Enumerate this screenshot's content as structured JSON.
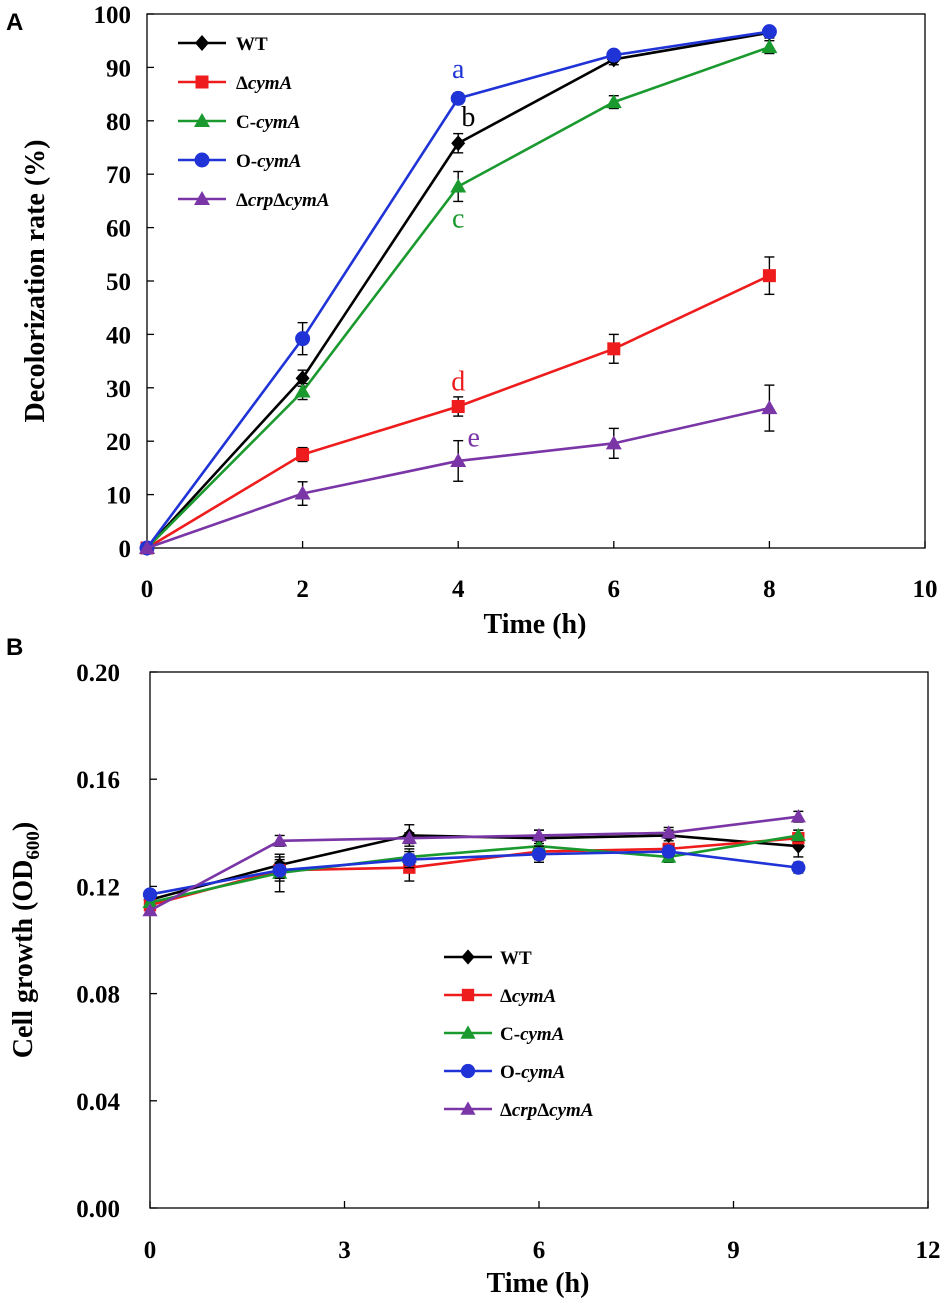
{
  "colors": {
    "WT": "#000000",
    "ΔcymA": "#ee1c1c",
    "C-cymA": "#1a9a2e",
    "O-cymA": "#1f33d6",
    "ΔcrpΔcymA": "#7a35a6"
  },
  "chart_data": [
    {
      "panel_label": "A",
      "type": "line",
      "title": "",
      "xlabel": "Time  (h)",
      "ylabel": "Decolorization  rate  (%)",
      "xlim": [
        0,
        10
      ],
      "ylim": [
        0,
        100
      ],
      "xticks": [
        0,
        2,
        4,
        6,
        8,
        10
      ],
      "yticks": [
        0,
        10,
        20,
        30,
        40,
        50,
        60,
        70,
        80,
        90,
        100
      ],
      "x": [
        0,
        2,
        4,
        6,
        8
      ],
      "legend_position": "top-left",
      "series": [
        {
          "name": "WT",
          "legend_main": "WT",
          "legend_italic": "",
          "legend_rest": "",
          "marker": "diamond",
          "values": [
            0,
            31.8,
            75.8,
            91.5,
            96.5
          ],
          "errors": [
            0,
            1.5,
            1.8,
            1.0,
            1.0
          ]
        },
        {
          "name": "ΔcymA",
          "legend_main": "Δ",
          "legend_italic": "cymA",
          "legend_rest": "",
          "marker": "square",
          "values": [
            0,
            17.5,
            26.5,
            37.3,
            51.0
          ],
          "errors": [
            0,
            1.3,
            1.8,
            2.7,
            3.5
          ]
        },
        {
          "name": "C-cymA",
          "legend_main": "C-",
          "legend_italic": "cymA",
          "legend_rest": "",
          "marker": "triangle",
          "values": [
            0,
            29.3,
            67.7,
            83.5,
            93.8
          ],
          "errors": [
            0,
            1.5,
            2.8,
            1.2,
            1.2
          ]
        },
        {
          "name": "O-cymA",
          "legend_main": "O-",
          "legend_italic": "cymA",
          "legend_rest": "",
          "marker": "circle",
          "values": [
            0,
            39.2,
            84.2,
            92.3,
            96.7
          ],
          "errors": [
            0,
            3.0,
            1.0,
            0.8,
            0.6
          ]
        },
        {
          "name": "ΔcrpΔcymA",
          "legend_main": "Δ",
          "legend_italic": "crp",
          "legend_rest": "Δ",
          "legend_italic2": "cymA",
          "marker": "triangle",
          "values": [
            0,
            10.2,
            16.3,
            19.6,
            26.2
          ],
          "errors": [
            0,
            2.2,
            3.8,
            2.8,
            4.3
          ]
        }
      ],
      "annotations": [
        {
          "text": "a",
          "series": "O-cymA",
          "x": 4,
          "y": 88.0
        },
        {
          "text": "b",
          "series": "WT",
          "x": 4.13,
          "y": 79.0
        },
        {
          "text": "c",
          "series": "C-cymA",
          "x": 4.0,
          "y": 60.0
        },
        {
          "text": "d",
          "series": "ΔcymA",
          "x": 4.0,
          "y": 29.5
        },
        {
          "text": "e",
          "series": "ΔcrpΔcymA",
          "x": 4.2,
          "y": 19.0
        }
      ]
    },
    {
      "panel_label": "B",
      "type": "line",
      "title": "",
      "xlabel": "Time  (h)",
      "ylabel": "Cell growth (OD",
      "ylabel_sub": "600",
      "ylabel_close": ")",
      "xlim": [
        0,
        12
      ],
      "ylim": [
        0,
        0.2
      ],
      "xticks": [
        0,
        3,
        6,
        9,
        12
      ],
      "yticks": [
        "0.00",
        "0.04",
        "0.08",
        "0.12",
        "0.16",
        "0.20"
      ],
      "x": [
        0,
        2,
        4,
        6,
        8,
        10
      ],
      "legend_position": "center",
      "series": [
        {
          "name": "WT",
          "legend_main": "WT",
          "legend_italic": "",
          "legend_rest": "",
          "marker": "diamond",
          "values": [
            0.115,
            0.128,
            0.139,
            0.138,
            0.139,
            0.135
          ],
          "errors": [
            0,
            0.003,
            0.004,
            0.003,
            0.002,
            0.004
          ]
        },
        {
          "name": "ΔcymA",
          "legend_main": "Δ",
          "legend_italic": "cymA",
          "legend_rest": "",
          "marker": "square",
          "values": [
            0.113,
            0.126,
            0.127,
            0.133,
            0.134,
            0.138
          ],
          "errors": [
            0,
            0.004,
            0.005,
            0.003,
            0.002,
            0.003
          ]
        },
        {
          "name": "C-cymA",
          "legend_main": "C-",
          "legend_italic": "cymA",
          "legend_rest": "",
          "marker": "triangle",
          "values": [
            0.114,
            0.125,
            0.131,
            0.135,
            0.131,
            0.139
          ],
          "errors": [
            0,
            0.007,
            0.003,
            0.003,
            0.002,
            0.002
          ]
        },
        {
          "name": "O-cymA",
          "legend_main": "O-",
          "legend_italic": "cymA",
          "legend_rest": "",
          "marker": "circle",
          "values": [
            0.117,
            0.126,
            0.13,
            0.132,
            0.133,
            0.127
          ],
          "errors": [
            0,
            0.003,
            0.003,
            0.003,
            0.002,
            0.002
          ]
        },
        {
          "name": "ΔcrpΔcymA",
          "legend_main": "Δ",
          "legend_italic": "crp",
          "legend_rest": "Δ",
          "legend_italic2": "cymA",
          "marker": "triangle",
          "values": [
            0.111,
            0.137,
            0.138,
            0.139,
            0.14,
            0.146
          ],
          "errors": [
            0,
            0.002,
            0.002,
            0.002,
            0.002,
            0.002
          ]
        }
      ]
    }
  ]
}
